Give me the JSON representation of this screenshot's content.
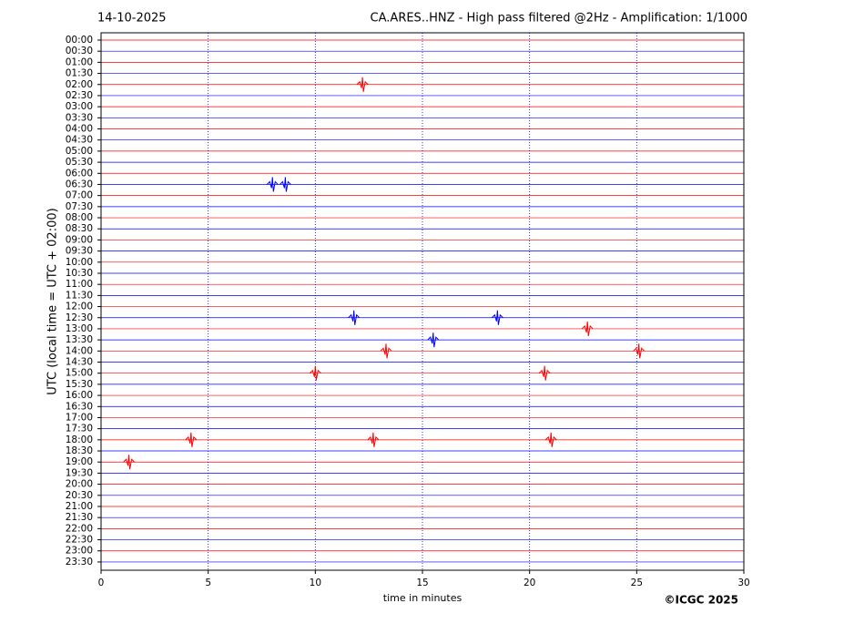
{
  "chart_data": {
    "type": "helicorder",
    "date": "14-10-2025",
    "title": "CA.ARES..HNZ - High pass filtered @2Hz - Amplification: 1/1000",
    "ylabel": "UTC (local time = UTC + 02:00)",
    "xlabel": "time in minutes",
    "credit": "©ICGC 2025",
    "categories": [
      "00:00",
      "00:30",
      "01:00",
      "01:30",
      "02:00",
      "02:30",
      "03:00",
      "03:30",
      "04:00",
      "04:30",
      "05:00",
      "05:30",
      "06:00",
      "06:30",
      "07:00",
      "07:30",
      "08:00",
      "08:30",
      "09:00",
      "09:30",
      "10:00",
      "10:30",
      "11:00",
      "11:30",
      "12:00",
      "12:30",
      "13:00",
      "13:30",
      "14:00",
      "14:30",
      "15:00",
      "15:30",
      "16:00",
      "16:30",
      "17:00",
      "17:30",
      "18:00",
      "18:30",
      "19:00",
      "19:30",
      "20:00",
      "20:30",
      "21:00",
      "21:30",
      "22:00",
      "22:30",
      "23:00",
      "23:30"
    ],
    "colors": [
      "#ff0000",
      "#0000ff"
    ],
    "xlim": [
      0,
      30
    ],
    "xticks": [
      0,
      5,
      10,
      15,
      20,
      25,
      30
    ],
    "grid": true,
    "events": [
      {
        "time": "02:00",
        "minute": 12.2
      },
      {
        "time": "06:30",
        "minute": 8.0
      },
      {
        "time": "06:30",
        "minute": 8.6
      },
      {
        "time": "12:30",
        "minute": 11.8
      },
      {
        "time": "12:30",
        "minute": 18.5
      },
      {
        "time": "13:00",
        "minute": 22.7
      },
      {
        "time": "13:30",
        "minute": 15.5
      },
      {
        "time": "14:00",
        "minute": 13.3
      },
      {
        "time": "14:00",
        "minute": 25.1
      },
      {
        "time": "15:00",
        "minute": 10.0
      },
      {
        "time": "15:00",
        "minute": 20.7
      },
      {
        "time": "18:00",
        "minute": 4.2
      },
      {
        "time": "18:00",
        "minute": 12.7
      },
      {
        "time": "18:00",
        "minute": 21.0
      },
      {
        "time": "19:00",
        "minute": 1.3
      }
    ]
  }
}
